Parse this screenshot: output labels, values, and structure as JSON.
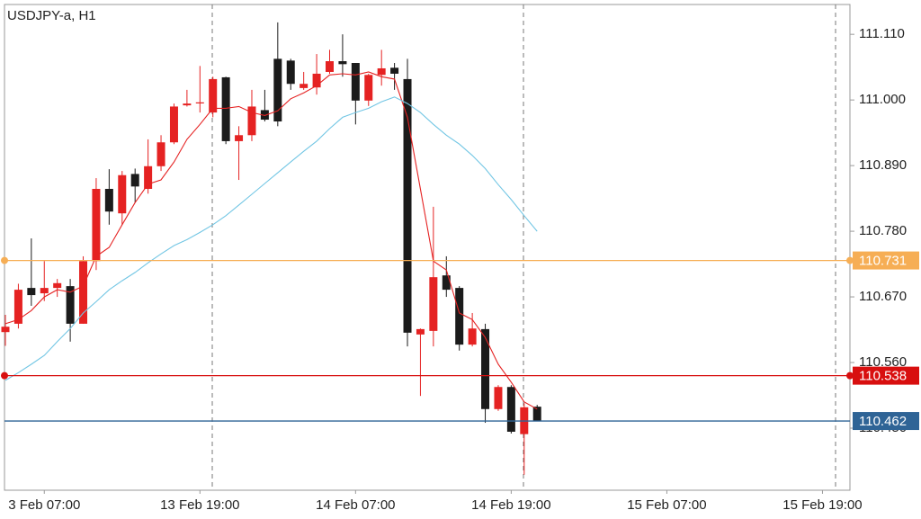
{
  "chart_data": {
    "type": "candlestick",
    "title": "USDJPY-a, H1",
    "categories": [
      null,
      null,
      null,
      "3 Feb 07:00",
      null,
      null,
      null,
      null,
      null,
      null,
      null,
      null,
      null,
      null,
      null,
      "13 Feb 19:00",
      null,
      null,
      null,
      null,
      null,
      null,
      null,
      null,
      null,
      null,
      null,
      "14 Feb 07:00",
      null,
      null,
      null,
      null,
      null,
      null,
      null,
      null,
      null,
      null,
      null,
      "14 Feb 19:00",
      null,
      null,
      null,
      null,
      null,
      null,
      null,
      null,
      null,
      null,
      null,
      "15 Feb 07:00",
      null,
      null,
      null,
      null,
      null,
      null,
      null,
      null,
      null,
      null,
      null,
      "15 Feb 19:00"
    ],
    "open": [
      110.611,
      110.625,
      110.685,
      110.676,
      110.685,
      110.688,
      110.625,
      110.73,
      110.851,
      110.81,
      110.876,
      110.851,
      110.889,
      110.929,
      110.991,
      110.995,
      110.979,
      111.038,
      110.931,
      110.941,
      110.983,
      111.069,
      111.066,
      111.02,
      111.021,
      111.047,
      111.065,
      111.062,
      110.999,
      111.042,
      111.054,
      111.035,
      110.607,
      110.613,
      110.706,
      110.685,
      110.59,
      110.616,
      110.482,
      110.519,
      110.44,
      110.486,
      null,
      null,
      null,
      null,
      null,
      null,
      null,
      null,
      null,
      null,
      null,
      null,
      null,
      null,
      null,
      null,
      null,
      null,
      null,
      null,
      null,
      null
    ],
    "high": [
      110.64,
      110.692,
      110.768,
      110.73,
      110.7,
      110.7,
      110.738,
      110.869,
      110.884,
      110.881,
      110.885,
      110.934,
      110.941,
      110.994,
      111.017,
      111.057,
      111.039,
      111.039,
      110.956,
      111.017,
      111.017,
      111.13,
      111.069,
      111.047,
      111.077,
      111.084,
      111.11,
      111.062,
      111.044,
      111.084,
      111.062,
      111.069,
      110.617,
      110.821,
      110.738,
      110.688,
      110.643,
      110.625,
      110.522,
      110.522,
      110.492,
      110.489,
      null,
      null,
      null,
      null,
      null,
      null,
      null,
      null,
      null,
      null,
      null,
      null,
      null,
      null,
      null,
      null,
      null,
      null,
      null,
      null,
      null,
      null
    ],
    "low": [
      110.588,
      110.617,
      110.655,
      110.663,
      110.67,
      110.595,
      110.625,
      110.715,
      110.791,
      110.791,
      110.828,
      110.843,
      110.881,
      110.926,
      110.989,
      110.979,
      110.971,
      110.926,
      110.866,
      110.931,
      110.964,
      110.956,
      111.017,
      111.017,
      111.009,
      111.044,
      111.039,
      110.959,
      110.99,
      111.024,
      111.017,
      110.587,
      110.504,
      110.587,
      110.67,
      110.58,
      110.587,
      110.459,
      110.479,
      110.441,
      110.372,
      110.462,
      null,
      null,
      null,
      null,
      null,
      null,
      null,
      null,
      null,
      null,
      null,
      null,
      null,
      null,
      null,
      null,
      null,
      null,
      null,
      null,
      null,
      null
    ],
    "close": [
      110.62,
      110.682,
      110.673,
      110.685,
      110.693,
      110.625,
      110.73,
      110.851,
      110.813,
      110.874,
      110.855,
      110.889,
      110.929,
      110.989,
      110.994,
      110.996,
      111.035,
      110.931,
      110.941,
      110.989,
      110.967,
      110.964,
      111.027,
      111.027,
      111.044,
      111.065,
      111.06,
      110.999,
      111.042,
      111.053,
      111.044,
      110.61,
      110.616,
      110.703,
      110.682,
      110.59,
      110.617,
      110.482,
      110.519,
      110.444,
      110.485,
      110.462,
      null,
      null,
      null,
      null,
      null,
      null,
      null,
      null,
      null,
      null,
      null,
      null,
      null,
      null,
      null,
      null,
      null,
      null,
      null,
      null,
      null,
      null
    ],
    "up_color": "#e52222",
    "down_color": "#1b1b1b",
    "ma": [
      {
        "color": "#e52222",
        "values": [
          110.625,
          110.632,
          110.647,
          110.67,
          110.682,
          110.678,
          110.688,
          110.738,
          110.753,
          110.791,
          110.828,
          110.859,
          110.866,
          110.896,
          110.934,
          110.959,
          110.986,
          110.986,
          110.989,
          110.979,
          110.974,
          110.982,
          111.002,
          111.012,
          111.024,
          111.042,
          111.044,
          111.042,
          111.047,
          111.039,
          111.035,
          110.971,
          110.851,
          110.73,
          110.715,
          110.643,
          110.632,
          110.602,
          110.557,
          110.527,
          110.494,
          110.482,
          null,
          null,
          null,
          null,
          null,
          null,
          null,
          null,
          null,
          null,
          null,
          null,
          null,
          null,
          null,
          null,
          null,
          null,
          null,
          null,
          null,
          null
        ]
      },
      {
        "color": "#72c6e4",
        "values": [
          110.53,
          110.543,
          110.557,
          110.572,
          110.595,
          110.617,
          110.643,
          110.662,
          110.682,
          110.697,
          110.711,
          110.727,
          110.742,
          110.756,
          110.766,
          110.778,
          110.791,
          110.806,
          110.824,
          110.842,
          110.86,
          110.878,
          110.896,
          110.914,
          110.931,
          110.952,
          110.971,
          110.979,
          110.986,
          110.997,
          111.005,
          110.994,
          110.979,
          110.959,
          110.941,
          110.926,
          110.907,
          110.885,
          110.858,
          110.833,
          110.806,
          110.78,
          null,
          null,
          null,
          null,
          null,
          null,
          null,
          null,
          null,
          null,
          null,
          null,
          null,
          null,
          null,
          null,
          null,
          null,
          null,
          null,
          null,
          null
        ]
      }
    ],
    "levels": [
      {
        "value": 110.731,
        "color": "#f6ae55"
      },
      {
        "value": 110.538,
        "color": "#d80f0f"
      },
      {
        "value": 110.462,
        "color": "#2f6496"
      }
    ],
    "ylim": [
      110.346,
      111.16
    ],
    "yticks": [
      {
        "value": 110.45,
        "label": "110.450"
      },
      {
        "value": 110.56,
        "label": "110.560"
      },
      {
        "value": 110.67,
        "label": "110.670"
      },
      {
        "value": 110.78,
        "label": "110.780"
      },
      {
        "value": 110.89,
        "label": "110.890"
      },
      {
        "value": 111.0,
        "label": "111.000"
      },
      {
        "value": 111.11,
        "label": "111.110"
      }
    ]
  }
}
